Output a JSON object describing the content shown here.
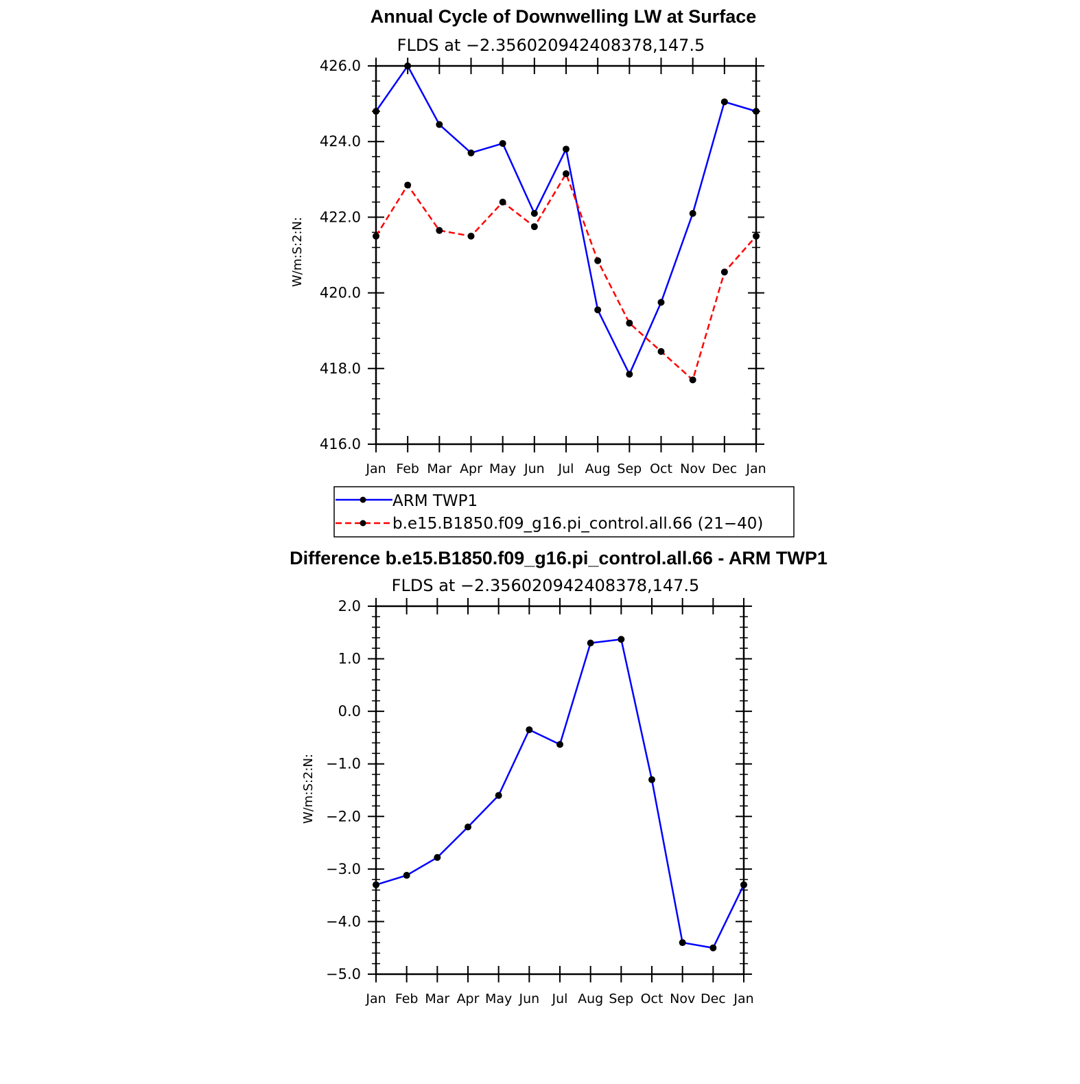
{
  "chart_data": [
    {
      "type": "line",
      "title": "Annual Cycle of Downwelling LW at Surface",
      "subtitle": "FLDS at −2.356020942408378,147.5",
      "ylabel": "W/m:S:2:N:",
      "xlabel": "",
      "categories": [
        "Jan",
        "Feb",
        "Mar",
        "Apr",
        "May",
        "Jun",
        "Jul",
        "Aug",
        "Sep",
        "Oct",
        "Nov",
        "Dec",
        "Jan"
      ],
      "ylim": [
        416.0,
        426.0
      ],
      "yticks": [
        "416.0",
        "418.0",
        "420.0",
        "422.0",
        "424.0",
        "426.0"
      ],
      "grid": false,
      "legend_position": "bottom",
      "series": [
        {
          "name": "ARM TWP1",
          "color": "#0000ff",
          "dash": "solid",
          "values": [
            424.8,
            426.0,
            424.45,
            423.7,
            423.95,
            422.1,
            423.8,
            419.55,
            417.85,
            419.75,
            422.1,
            425.05,
            424.8
          ]
        },
        {
          "name": "b.e15.B1850.f09_g16.pi_control.all.66 (21−40)",
          "color": "#ff0000",
          "dash": "dashed",
          "values": [
            421.5,
            422.85,
            421.65,
            421.5,
            422.4,
            421.75,
            423.15,
            420.85,
            419.2,
            418.45,
            417.7,
            420.55,
            421.5
          ]
        }
      ]
    },
    {
      "type": "line",
      "title": "Difference b.e15.B1850.f09_g16.pi_control.all.66 - ARM TWP1",
      "subtitle": "FLDS at −2.356020942408378,147.5",
      "ylabel": "W/m:S:2:N:",
      "xlabel": "",
      "categories": [
        "Jan",
        "Feb",
        "Mar",
        "Apr",
        "May",
        "Jun",
        "Jul",
        "Aug",
        "Sep",
        "Oct",
        "Nov",
        "Dec",
        "Jan"
      ],
      "ylim": [
        -5.0,
        2.0
      ],
      "yticks": [
        "−5.0",
        "−4.0",
        "−3.0",
        "−2.0",
        "−1.0",
        "0.0",
        "1.0",
        "2.0"
      ],
      "grid": false,
      "series": [
        {
          "color": "#0000ff",
          "dash": "solid",
          "values": [
            -3.3,
            -3.12,
            -2.78,
            -2.2,
            -1.6,
            -0.35,
            -0.63,
            1.3,
            1.37,
            -1.3,
            -4.4,
            -4.5,
            -3.3
          ]
        }
      ]
    }
  ]
}
